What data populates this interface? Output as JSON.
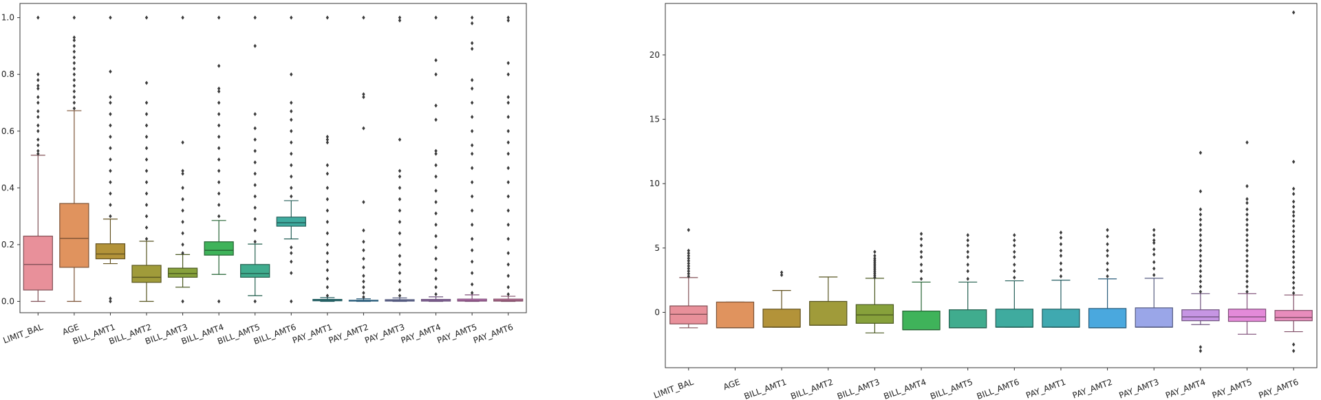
{
  "chart_data": [
    {
      "type": "box",
      "title": "",
      "xlabel": "",
      "ylabel": "",
      "ylim": [
        -0.04,
        1.05
      ],
      "yticks": [
        0.0,
        0.2,
        0.4,
        0.6,
        0.8,
        1.0
      ],
      "ytick_labels": [
        "0.0",
        "0.2",
        "0.4",
        "0.6",
        "0.8",
        "1.0"
      ],
      "grid": false,
      "categories": [
        "LIMIT_BAL",
        "AGE",
        "BILL_AMT1",
        "BILL_AMT2",
        "BILL_AMT3",
        "BILL_AMT4",
        "BILL_AMT5",
        "BILL_AMT6",
        "PAY_AMT1",
        "PAY_AMT2",
        "PAY_AMT3",
        "PAY_AMT4",
        "PAY_AMT5",
        "PAY_AMT6"
      ],
      "colors": [
        "#e8909a",
        "#e0935e",
        "#b39339",
        "#a09b3a",
        "#87a13b",
        "#3fb35a",
        "#40ac8e",
        "#3fab9f",
        "#3fa9b0",
        "#4aa8de",
        "#9aa6e8",
        "#c695e3",
        "#e48ad9",
        "#e88cbc"
      ],
      "boxes": [
        {
          "whislo": 0.0,
          "q1": 0.04,
          "med": 0.13,
          "q3": 0.23,
          "whishi": 0.515
        },
        {
          "whislo": 0.0,
          "q1": 0.12,
          "med": 0.222,
          "q3": 0.345,
          "whishi": 0.672
        },
        {
          "whislo": 0.133,
          "q1": 0.15,
          "med": 0.167,
          "q3": 0.203,
          "whishi": 0.29
        },
        {
          "whislo": 0.0,
          "q1": 0.067,
          "med": 0.085,
          "q3": 0.127,
          "whishi": 0.212
        },
        {
          "whislo": 0.05,
          "q1": 0.085,
          "med": 0.098,
          "q3": 0.117,
          "whishi": 0.165
        },
        {
          "whislo": 0.095,
          "q1": 0.163,
          "med": 0.18,
          "q3": 0.21,
          "whishi": 0.285
        },
        {
          "whislo": 0.02,
          "q1": 0.085,
          "med": 0.098,
          "q3": 0.13,
          "whishi": 0.202
        },
        {
          "whislo": 0.22,
          "q1": 0.265,
          "med": 0.277,
          "q3": 0.297,
          "whishi": 0.355
        },
        {
          "whislo": 0.0,
          "q1": 0.002,
          "med": 0.004,
          "q3": 0.007,
          "whishi": 0.013
        },
        {
          "whislo": 0.0,
          "q1": 0.001,
          "med": 0.002,
          "q3": 0.004,
          "whishi": 0.009
        },
        {
          "whislo": 0.0,
          "q1": 0.001,
          "med": 0.003,
          "q3": 0.006,
          "whishi": 0.012
        },
        {
          "whislo": 0.0,
          "q1": 0.001,
          "med": 0.003,
          "q3": 0.007,
          "whishi": 0.016
        },
        {
          "whislo": 0.0,
          "q1": 0.001,
          "med": 0.003,
          "q3": 0.008,
          "whishi": 0.023
        },
        {
          "whislo": 0.0,
          "q1": 0.001,
          "med": 0.003,
          "q3": 0.008,
          "whishi": 0.018
        }
      ],
      "outlier_points": [
        [
          0.52,
          0.53,
          0.55,
          0.57,
          0.6,
          0.62,
          0.65,
          0.67,
          0.7,
          0.72,
          0.75,
          0.76,
          0.78,
          0.8,
          1.0
        ],
        [
          0.68,
          0.7,
          0.72,
          0.74,
          0.76,
          0.78,
          0.8,
          0.82,
          0.84,
          0.86,
          0.88,
          0.9,
          0.92,
          0.93,
          1.0
        ],
        [
          0.0,
          0.01,
          0.3,
          0.34,
          0.38,
          0.42,
          0.46,
          0.5,
          0.54,
          0.58,
          0.62,
          0.66,
          0.7,
          0.72,
          0.81,
          1.0
        ],
        [
          0.22,
          0.26,
          0.3,
          0.34,
          0.38,
          0.42,
          0.46,
          0.5,
          0.54,
          0.58,
          0.62,
          0.66,
          0.7,
          0.77,
          1.0
        ],
        [
          0.0,
          0.17,
          0.2,
          0.24,
          0.28,
          0.32,
          0.36,
          0.4,
          0.45,
          0.46,
          0.56,
          1.0
        ],
        [
          0.0,
          0.3,
          0.34,
          0.38,
          0.42,
          0.46,
          0.5,
          0.54,
          0.58,
          0.62,
          0.66,
          0.7,
          0.74,
          0.75,
          0.83,
          1.0
        ],
        [
          0.0,
          0.21,
          0.25,
          0.29,
          0.33,
          0.37,
          0.41,
          0.45,
          0.49,
          0.53,
          0.57,
          0.61,
          0.66,
          0.9,
          1.0
        ],
        [
          0.0,
          0.1,
          0.14,
          0.17,
          0.19,
          0.37,
          0.4,
          0.44,
          0.48,
          0.52,
          0.56,
          0.6,
          0.64,
          0.67,
          0.7,
          0.8,
          1.0
        ],
        [
          0.02,
          0.05,
          0.08,
          0.11,
          0.14,
          0.17,
          0.2,
          0.24,
          0.28,
          0.32,
          0.36,
          0.4,
          0.45,
          0.48,
          0.56,
          0.57,
          0.58,
          1.0
        ],
        [
          0.015,
          0.03,
          0.05,
          0.07,
          0.09,
          0.12,
          0.15,
          0.18,
          0.21,
          0.25,
          0.35,
          0.61,
          0.72,
          0.73,
          1.0
        ],
        [
          0.02,
          0.04,
          0.07,
          0.1,
          0.13,
          0.16,
          0.2,
          0.24,
          0.28,
          0.32,
          0.36,
          0.4,
          0.44,
          0.46,
          0.57,
          0.99,
          1.0
        ],
        [
          0.025,
          0.05,
          0.08,
          0.11,
          0.15,
          0.19,
          0.23,
          0.27,
          0.31,
          0.35,
          0.39,
          0.44,
          0.48,
          0.52,
          0.53,
          0.64,
          0.69,
          0.8,
          0.85,
          1.0
        ],
        [
          0.03,
          0.06,
          0.1,
          0.14,
          0.18,
          0.22,
          0.27,
          0.32,
          0.37,
          0.42,
          0.47,
          0.52,
          0.55,
          0.6,
          0.65,
          0.7,
          0.75,
          0.78,
          0.89,
          0.91,
          0.98,
          1.0
        ],
        [
          0.025,
          0.05,
          0.09,
          0.13,
          0.17,
          0.22,
          0.27,
          0.32,
          0.37,
          0.42,
          0.47,
          0.52,
          0.56,
          0.6,
          0.65,
          0.7,
          0.72,
          0.8,
          0.84,
          0.99,
          1.0
        ]
      ]
    },
    {
      "type": "box",
      "title": "",
      "xlabel": "",
      "ylabel": "",
      "ylim": [
        -4.3,
        24.0
      ],
      "yticks": [
        0,
        5,
        10,
        15,
        20
      ],
      "ytick_labels": [
        "0",
        "5",
        "10",
        "15",
        "20"
      ],
      "grid": false,
      "categories": [
        "LIMIT_BAL",
        "AGE",
        "BILL_AMT1",
        "BILL_AMT2",
        "BILL_AMT3",
        "BILL_AMT4",
        "BILL_AMT5",
        "BILL_AMT6",
        "PAY_AMT1",
        "PAY_AMT2",
        "PAY_AMT3",
        "PAY_AMT4",
        "PAY_AMT5",
        "PAY_AMT6"
      ],
      "colors": [
        "#e8909a",
        "#e0935e",
        "#b39339",
        "#a09b3a",
        "#87a13b",
        "#3fb35a",
        "#40ac8e",
        "#3fab9f",
        "#3fa9b0",
        "#4aa8de",
        "#9aa6e8",
        "#c695e3",
        "#e48ad9",
        "#e88cbc"
      ],
      "boxes": [
        {
          "whislo": -1.2,
          "q1": -0.9,
          "med": -0.15,
          "q3": 0.5,
          "whishi": 2.7
        },
        {
          "whislo": -1.2,
          "q1": -1.2,
          "med": -1.2,
          "q3": 0.8,
          "whishi": 0.8
        },
        {
          "whislo": -1.15,
          "q1": -1.15,
          "med": -1.15,
          "q3": 0.25,
          "whishi": 1.7
        },
        {
          "whislo": -1.0,
          "q1": -1.0,
          "med": -1.0,
          "q3": 0.85,
          "whishi": 2.75
        },
        {
          "whislo": -1.6,
          "q1": -0.85,
          "med": -0.2,
          "q3": 0.6,
          "whishi": 2.65
        },
        {
          "whislo": -1.35,
          "q1": -1.35,
          "med": -1.35,
          "q3": 0.1,
          "whishi": 2.35
        },
        {
          "whislo": -1.2,
          "q1": -1.2,
          "med": -1.2,
          "q3": 0.2,
          "whishi": 2.35
        },
        {
          "whislo": -1.15,
          "q1": -1.15,
          "med": -1.15,
          "q3": 0.25,
          "whishi": 2.45
        },
        {
          "whislo": -1.15,
          "q1": -1.15,
          "med": -1.15,
          "q3": 0.25,
          "whishi": 2.5
        },
        {
          "whislo": -1.2,
          "q1": -1.2,
          "med": -1.2,
          "q3": 0.3,
          "whishi": 2.6
        },
        {
          "whislo": -1.15,
          "q1": -1.15,
          "med": -1.15,
          "q3": 0.35,
          "whishi": 2.65
        },
        {
          "whislo": -0.95,
          "q1": -0.65,
          "med": -0.35,
          "q3": 0.2,
          "whishi": 1.45
        },
        {
          "whislo": -1.7,
          "q1": -0.7,
          "med": -0.35,
          "q3": 0.25,
          "whishi": 1.45
        },
        {
          "whislo": -1.5,
          "q1": -0.65,
          "med": -0.4,
          "q3": 0.15,
          "whishi": 1.35
        }
      ],
      "outlier_points": [
        [
          2.8,
          3.0,
          3.2,
          3.4,
          3.6,
          3.8,
          4.0,
          4.2,
          4.4,
          4.6,
          4.8,
          6.4
        ],
        [],
        [
          2.9,
          3.1
        ],
        [],
        [
          2.7,
          2.85,
          3.0,
          3.15,
          3.3,
          3.45,
          3.6,
          3.75,
          3.9,
          4.05,
          4.2,
          4.4,
          4.7
        ],
        [
          2.6,
          3.2,
          3.7,
          4.3,
          4.7,
          5.2,
          5.7,
          6.1
        ],
        [
          2.6,
          3.2,
          3.7,
          4.3,
          4.7,
          5.2,
          5.6,
          6.0
        ],
        [
          2.7,
          3.2,
          3.7,
          4.3,
          4.7,
          5.2,
          5.6,
          6.0
        ],
        [
          2.8,
          3.3,
          3.8,
          4.4,
          4.8,
          5.3,
          5.8,
          6.2
        ],
        [
          2.8,
          3.3,
          3.8,
          4.4,
          4.8,
          5.3,
          5.9,
          6.4
        ],
        [
          2.9,
          3.4,
          3.9,
          4.5,
          4.9,
          5.4,
          5.6,
          6.0,
          6.4
        ],
        [
          -3.0,
          -2.7,
          1.6,
          2.0,
          2.4,
          2.8,
          3.2,
          3.6,
          4.0,
          4.4,
          4.8,
          5.2,
          5.6,
          6.0,
          6.4,
          6.8,
          7.2,
          7.6,
          8.0,
          9.4,
          12.4
        ],
        [
          1.6,
          2.0,
          2.4,
          2.8,
          3.2,
          3.6,
          4.0,
          4.4,
          4.8,
          5.2,
          5.6,
          6.0,
          6.4,
          6.8,
          7.2,
          7.6,
          8.0,
          8.5,
          8.8,
          9.8,
          13.2
        ],
        [
          -3.0,
          -2.5,
          1.5,
          1.9,
          2.3,
          2.7,
          3.1,
          3.5,
          3.9,
          4.3,
          4.7,
          5.1,
          5.5,
          5.9,
          6.3,
          6.7,
          7.1,
          7.5,
          7.8,
          8.2,
          8.6,
          9.2,
          9.6,
          11.7,
          23.3
        ]
      ]
    }
  ]
}
